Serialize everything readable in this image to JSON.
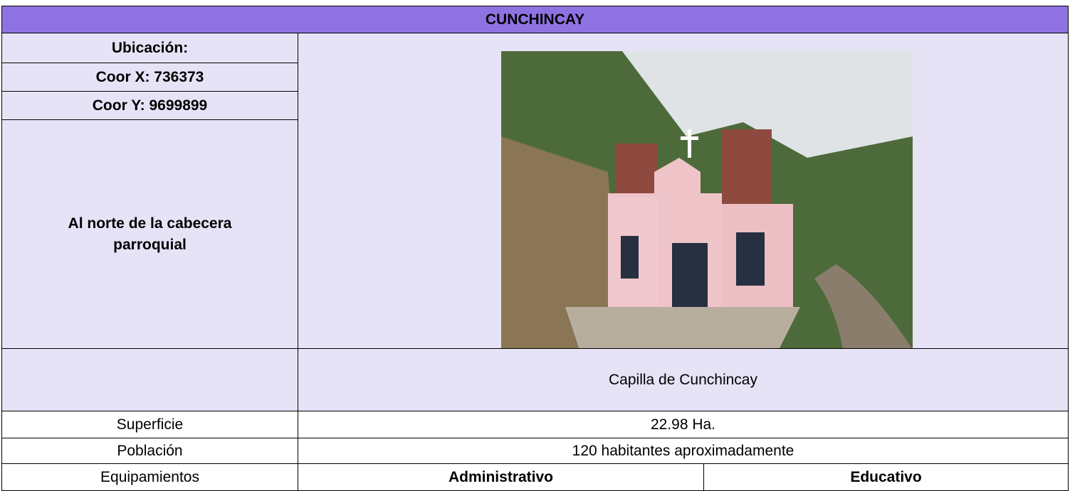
{
  "header": {
    "title": "CUNCHINCAY"
  },
  "location": {
    "label": "Ubicación:",
    "coor_x": "Coor X: 736373",
    "coor_y": "Coor Y: 9699899",
    "description": "Al norte de la cabecera parroquial"
  },
  "photo": {
    "caption": "Capilla de Cunchincay"
  },
  "table": {
    "rows": [
      [
        "Superficie",
        "22.98 Ha."
      ],
      [
        "Población",
        "120 habitantes aproximadamente"
      ],
      [
        "Equipamientos",
        "Administrativo",
        "Educativo"
      ]
    ]
  }
}
